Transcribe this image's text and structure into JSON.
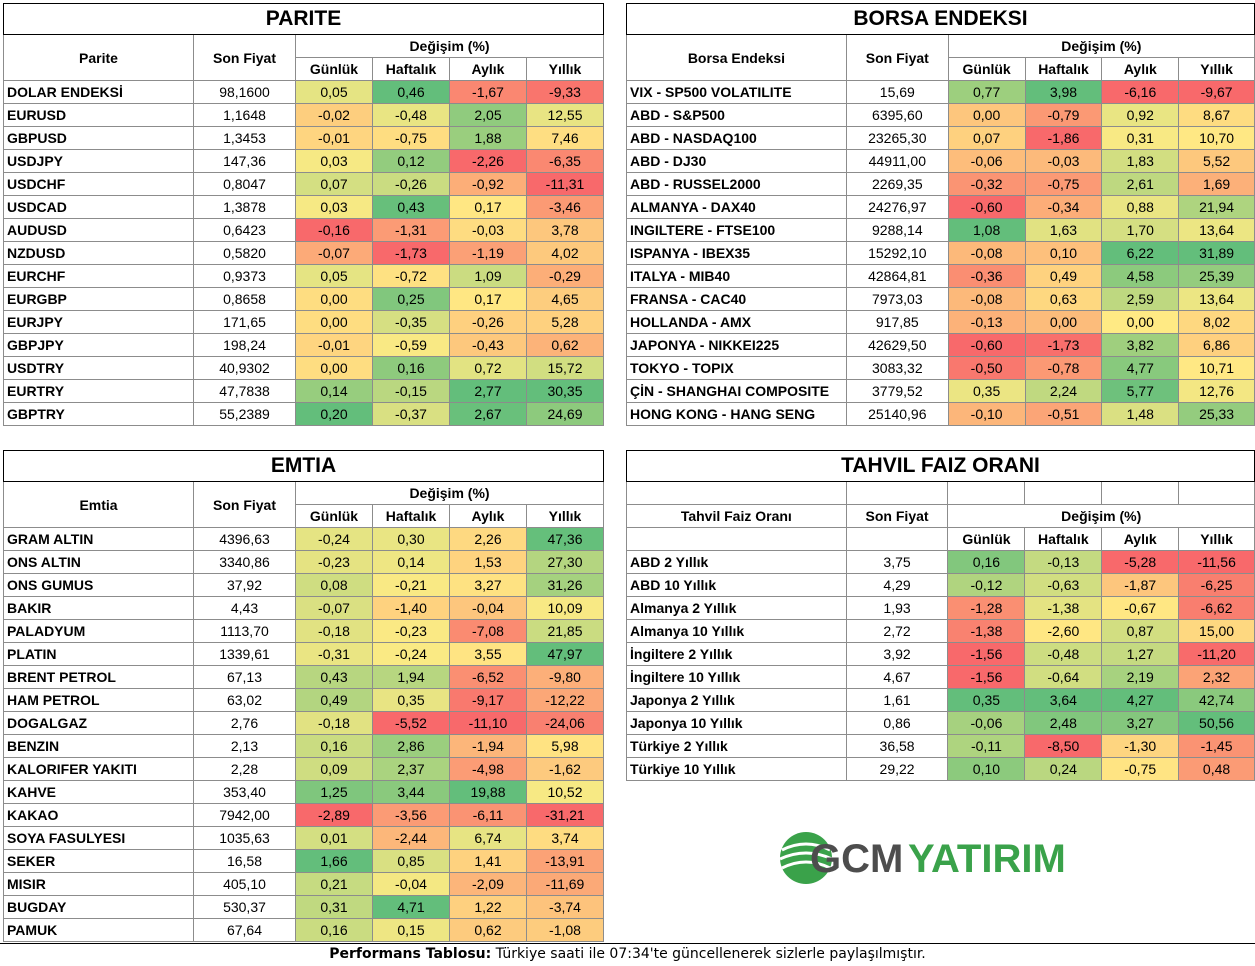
{
  "header_labels": {
    "son_fiyat": "Son Fiyat",
    "degisim": "Değişim (%)",
    "gunluk": "Günlük",
    "haftalik": "Haftalık",
    "aylik": "Aylık",
    "yillik": "Yıllık"
  },
  "parite": {
    "title": "PARITE",
    "col_label": "Parite",
    "rows": [
      {
        "name": "DOLAR ENDEKSİ",
        "price": "98,1600",
        "d": "0,05",
        "w": "0,46",
        "m": "-1,67",
        "y": "-9,33"
      },
      {
        "name": "EURUSD",
        "price": "1,1648",
        "d": "-0,02",
        "w": "-0,48",
        "m": "2,05",
        "y": "12,55"
      },
      {
        "name": "GBPUSD",
        "price": "1,3453",
        "d": "-0,01",
        "w": "-0,75",
        "m": "1,88",
        "y": "7,46"
      },
      {
        "name": "USDJPY",
        "price": "147,36",
        "d": "0,03",
        "w": "0,12",
        "m": "-2,26",
        "y": "-6,35"
      },
      {
        "name": "USDCHF",
        "price": "0,8047",
        "d": "0,07",
        "w": "-0,26",
        "m": "-0,92",
        "y": "-11,31"
      },
      {
        "name": "USDCAD",
        "price": "1,3878",
        "d": "0,03",
        "w": "0,43",
        "m": "0,17",
        "y": "-3,46"
      },
      {
        "name": "AUDUSD",
        "price": "0,6423",
        "d": "-0,16",
        "w": "-1,31",
        "m": "-0,03",
        "y": "3,78"
      },
      {
        "name": "NZDUSD",
        "price": "0,5820",
        "d": "-0,07",
        "w": "-1,73",
        "m": "-1,19",
        "y": "4,02"
      },
      {
        "name": "EURCHF",
        "price": "0,9373",
        "d": "0,05",
        "w": "-0,72",
        "m": "1,09",
        "y": "-0,29"
      },
      {
        "name": "EURGBP",
        "price": "0,8658",
        "d": "0,00",
        "w": "0,25",
        "m": "0,17",
        "y": "4,65"
      },
      {
        "name": "EURJPY",
        "price": "171,65",
        "d": "0,00",
        "w": "-0,35",
        "m": "-0,26",
        "y": "5,28"
      },
      {
        "name": "GBPJPY",
        "price": "198,24",
        "d": "-0,01",
        "w": "-0,59",
        "m": "-0,43",
        "y": "0,62"
      },
      {
        "name": "USDTRY",
        "price": "40,9302",
        "d": "0,00",
        "w": "0,16",
        "m": "0,72",
        "y": "15,72"
      },
      {
        "name": "EURTRY",
        "price": "47,7838",
        "d": "0,14",
        "w": "-0,15",
        "m": "2,77",
        "y": "30,35"
      },
      {
        "name": "GBPTRY",
        "price": "55,2389",
        "d": "0,20",
        "w": "-0,37",
        "m": "2,67",
        "y": "24,69"
      }
    ]
  },
  "borsa": {
    "title": "BORSA ENDEKSI",
    "col_label": "Borsa Endeksi",
    "rows": [
      {
        "name": "VIX  - SP500 VOLATILITE",
        "price": "15,69",
        "d": "0,77",
        "w": "3,98",
        "m": "-6,16",
        "y": "-9,67"
      },
      {
        "name": "ABD - S&P500",
        "price": "6395,60",
        "d": "0,00",
        "w": "-0,79",
        "m": "0,92",
        "y": "8,67"
      },
      {
        "name": "ABD - NASDAQ100",
        "price": "23265,30",
        "d": "0,07",
        "w": "-1,86",
        "m": "0,31",
        "y": "10,70"
      },
      {
        "name": "ABD - DJ30",
        "price": "44911,00",
        "d": "-0,06",
        "w": "-0,03",
        "m": "1,83",
        "y": "5,52"
      },
      {
        "name": "ABD - RUSSEL2000",
        "price": "2269,35",
        "d": "-0,32",
        "w": "-0,75",
        "m": "2,61",
        "y": "1,69"
      },
      {
        "name": "ALMANYA - DAX40",
        "price": "24276,97",
        "d": "-0,60",
        "w": "-0,34",
        "m": "0,88",
        "y": "21,94"
      },
      {
        "name": "INGILTERE - FTSE100",
        "price": "9288,14",
        "d": "1,08",
        "w": "1,63",
        "m": "1,70",
        "y": "13,64"
      },
      {
        "name": "ISPANYA - IBEX35",
        "price": "15292,10",
        "d": "-0,08",
        "w": "0,10",
        "m": "6,22",
        "y": "31,89"
      },
      {
        "name": "ITALYA - MIB40",
        "price": "42864,81",
        "d": "-0,36",
        "w": "0,49",
        "m": "4,58",
        "y": "25,39"
      },
      {
        "name": "FRANSA - CAC40",
        "price": "7973,03",
        "d": "-0,08",
        "w": "0,63",
        "m": "2,59",
        "y": "13,64"
      },
      {
        "name": "HOLLANDA - AMX",
        "price": "917,85",
        "d": "-0,13",
        "w": "0,00",
        "m": "0,00",
        "y": "8,02"
      },
      {
        "name": "JAPONYA - NIKKEI225",
        "price": "42629,50",
        "d": "-0,60",
        "w": "-1,73",
        "m": "3,82",
        "y": "6,86"
      },
      {
        "name": "TOKYO - TOPIX",
        "price": "3083,32",
        "d": "-0,50",
        "w": "-0,78",
        "m": "4,77",
        "y": "10,71"
      },
      {
        "name": "ÇİN - SHANGHAI COMPOSITE",
        "price": "3779,52",
        "d": "0,35",
        "w": "2,24",
        "m": "5,77",
        "y": "12,76"
      },
      {
        "name": "HONG KONG - HANG SENG",
        "price": "25140,96",
        "d": "-0,10",
        "w": "-0,51",
        "m": "1,48",
        "y": "25,33"
      }
    ]
  },
  "emtia": {
    "title": "EMTIA",
    "col_label": "Emtia",
    "rows": [
      {
        "name": "GRAM ALTIN",
        "price": "4396,63",
        "d": "-0,24",
        "w": "0,30",
        "m": "2,26",
        "y": "47,36"
      },
      {
        "name": "ONS ALTIN",
        "price": "3340,86",
        "d": "-0,23",
        "w": "0,14",
        "m": "1,53",
        "y": "27,30"
      },
      {
        "name": "ONS GUMUS",
        "price": "37,92",
        "d": "0,08",
        "w": "-0,21",
        "m": "3,27",
        "y": "31,26"
      },
      {
        "name": "BAKIR",
        "price": "4,43",
        "d": "-0,07",
        "w": "-1,40",
        "m": "-0,04",
        "y": "10,09"
      },
      {
        "name": "PALADYUM",
        "price": "1113,70",
        "d": "-0,18",
        "w": "-0,23",
        "m": "-7,08",
        "y": "21,85"
      },
      {
        "name": "PLATIN",
        "price": "1339,61",
        "d": "-0,31",
        "w": "-0,24",
        "m": "3,55",
        "y": "47,97"
      },
      {
        "name": "BRENT PETROL",
        "price": "67,13",
        "d": "0,43",
        "w": "1,94",
        "m": "-6,52",
        "y": "-9,80"
      },
      {
        "name": "HAM PETROL",
        "price": "63,02",
        "d": "0,49",
        "w": "0,35",
        "m": "-9,17",
        "y": "-12,22"
      },
      {
        "name": "DOGALGAZ",
        "price": "2,76",
        "d": "-0,18",
        "w": "-5,52",
        "m": "-11,10",
        "y": "-24,06"
      },
      {
        "name": "BENZIN",
        "price": "2,13",
        "d": "0,16",
        "w": "2,86",
        "m": "-1,94",
        "y": "5,98"
      },
      {
        "name": "KALORIFER YAKITI",
        "price": "2,28",
        "d": "0,09",
        "w": "2,37",
        "m": "-4,98",
        "y": "-1,62"
      },
      {
        "name": "KAHVE",
        "price": "353,40",
        "d": "1,25",
        "w": "3,44",
        "m": "19,88",
        "y": "10,52"
      },
      {
        "name": "KAKAO",
        "price": "7942,00",
        "d": "-2,89",
        "w": "-3,56",
        "m": "-6,11",
        "y": "-31,21"
      },
      {
        "name": "SOYA FASULYESI",
        "price": "1035,63",
        "d": "0,01",
        "w": "-2,44",
        "m": "6,74",
        "y": "3,74"
      },
      {
        "name": "SEKER",
        "price": "16,58",
        "d": "1,66",
        "w": "0,85",
        "m": "1,41",
        "y": "-13,91"
      },
      {
        "name": "MISIR",
        "price": "405,10",
        "d": "0,21",
        "w": "-0,04",
        "m": "-2,09",
        "y": "-11,69"
      },
      {
        "name": "BUGDAY",
        "price": "530,37",
        "d": "0,31",
        "w": "4,71",
        "m": "1,22",
        "y": "-3,74"
      },
      {
        "name": "PAMUK",
        "price": "67,64",
        "d": "0,16",
        "w": "0,15",
        "m": "0,62",
        "y": "-1,08"
      }
    ]
  },
  "tahvil": {
    "title": "TAHVIL FAIZ ORANI",
    "col_label": "Tahvil Faiz Oranı",
    "rows": [
      {
        "name": "ABD 2 Yıllık",
        "price": "3,75",
        "d": "0,16",
        "w": "-0,13",
        "m": "-5,28",
        "y": "-11,56"
      },
      {
        "name": "ABD 10 Yıllık",
        "price": "4,29",
        "d": "-0,12",
        "w": "-0,63",
        "m": "-1,87",
        "y": "-6,25"
      },
      {
        "name": "Almanya 2 Yıllık",
        "price": "1,93",
        "d": "-1,28",
        "w": "-1,38",
        "m": "-0,67",
        "y": "-6,62"
      },
      {
        "name": "Almanya 10 Yıllık",
        "price": "2,72",
        "d": "-1,38",
        "w": "-2,60",
        "m": "0,87",
        "y": "15,00"
      },
      {
        "name": "İngiltere 2 Yıllık",
        "price": "3,92",
        "d": "-1,56",
        "w": "-0,48",
        "m": "1,27",
        "y": "-11,20"
      },
      {
        "name": "İngiltere 10 Yıllık",
        "price": "4,67",
        "d": "-1,56",
        "w": "-0,64",
        "m": "2,19",
        "y": "2,32"
      },
      {
        "name": "Japonya 2 Yıllık",
        "price": "1,61",
        "d": "0,35",
        "w": "3,64",
        "m": "4,27",
        "y": "42,74"
      },
      {
        "name": "Japonya 10 Yıllık",
        "price": "0,86",
        "d": "-0,06",
        "w": "2,48",
        "m": "3,27",
        "y": "50,56"
      },
      {
        "name": "Türkiye 2 Yıllık",
        "price": "36,58",
        "d": "-0,11",
        "w": "-8,50",
        "m": "-1,30",
        "y": "-1,45"
      },
      {
        "name": "Türkiye 10 Yıllık",
        "price": "29,22",
        "d": "0,10",
        "w": "0,24",
        "m": "-0,75",
        "y": "0,48"
      }
    ]
  },
  "logo": {
    "gcm": "GCM",
    "yatirim": "YATIRIM",
    "brand_color": "#3aa24a",
    "gcm_color": "#4d4d4d"
  },
  "footer": {
    "bold": "Performans Tablosu:",
    "text": " Türkiye saati ile 07:34'te güncellenerek sizlerle paylaşılmıştır."
  },
  "colors": {
    "red": "#f8696b",
    "yellow": "#ffeb84",
    "green": "#63be7b"
  }
}
